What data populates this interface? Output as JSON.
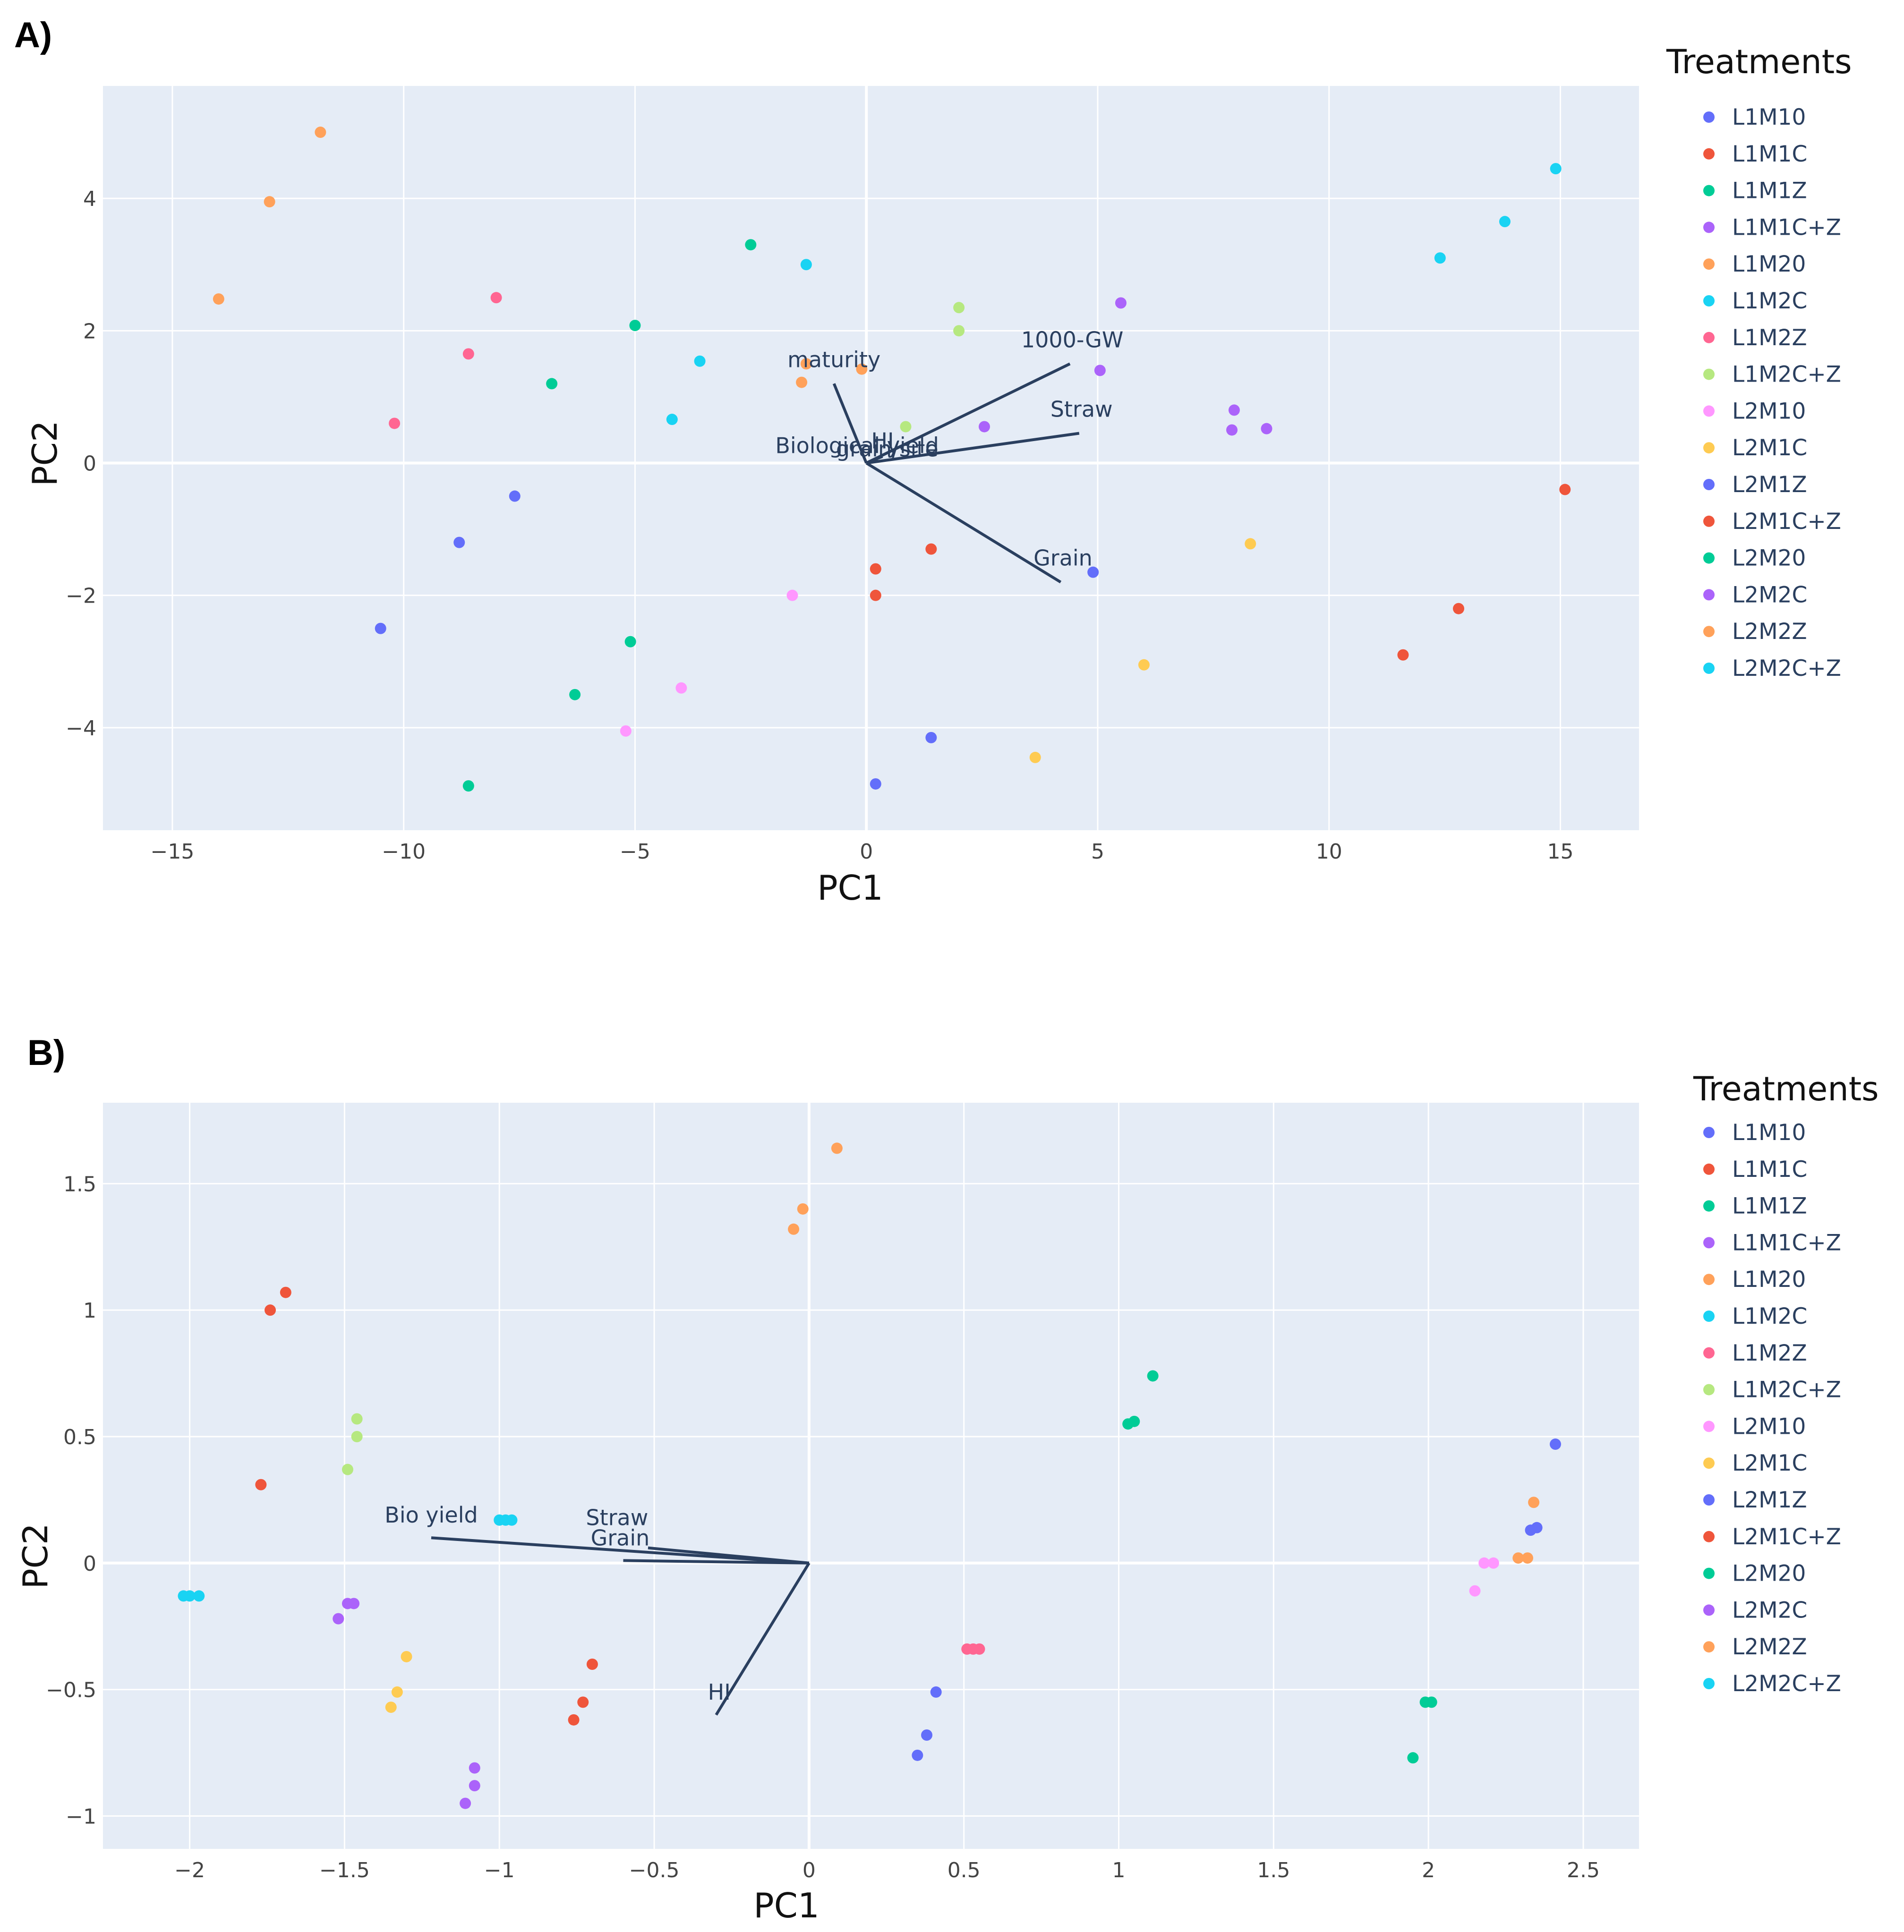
{
  "colors": {
    "plot_bg": "#e5ecf6",
    "grid": "#ffffff",
    "loading_line": "#2a3f5f",
    "treatments": {
      "L1M10": "#636efa",
      "L1M1C": "#ef553b",
      "L1M1Z": "#00cc96",
      "L1M1C+Z": "#ab63fa",
      "L1M20": "#ffa15a",
      "L1M2C": "#19d3f3",
      "L1M2Z": "#ff6692",
      "L1M2C+Z": "#b6e880",
      "L2M10": "#ff97ff",
      "L2M1C": "#fecb52",
      "L2M1Z": "#636efa",
      "L2M1C+Z": "#ef553b",
      "L2M20": "#00cc96",
      "L2M2C": "#ab63fa",
      "L2M2Z": "#ffa15a",
      "L2M2C+Z": "#19d3f3"
    }
  },
  "chart_data": [
    {
      "type": "scatter",
      "panel_label": "A)",
      "title": "",
      "xlabel": "PC1",
      "ylabel": "PC2",
      "xlim": [
        -16.5,
        16.7
      ],
      "ylim": [
        -5.55,
        5.7
      ],
      "xticks": [
        -15,
        -10,
        -5,
        0,
        5,
        10,
        15
      ],
      "xtick_labels": [
        "−15",
        "−10",
        "−5",
        "0",
        "5",
        "10",
        "15"
      ],
      "yticks": [
        -4,
        -2,
        0,
        2,
        4
      ],
      "ytick_labels": [
        "−4",
        "−2",
        "0",
        "2",
        "4"
      ],
      "legend_title": "Treatments",
      "legend_labels": [
        "L1M10",
        "L1M1C",
        "L1M1Z",
        "L1M1C+Z",
        "L1M20",
        "L1M2C",
        "L1M2Z",
        "L1M2C+Z",
        "L2M10",
        "L2M1C",
        "L2M1Z",
        "L2M1C+Z",
        "L2M20",
        "L2M2C",
        "L2M2Z",
        "L2M2C+Z"
      ],
      "series": [
        {
          "name": "L1M10",
          "points": [
            [
              -7.6,
              -0.5
            ],
            [
              -8.8,
              -1.2
            ],
            [
              -10.5,
              -2.5
            ]
          ]
        },
        {
          "name": "L1M1C",
          "points": [
            [
              0.2,
              -1.6
            ],
            [
              0.2,
              -2.0
            ],
            [
              1.4,
              -1.3
            ]
          ]
        },
        {
          "name": "L1M1Z",
          "points": [
            [
              -2.5,
              3.3
            ],
            [
              -5.0,
              2.08
            ],
            [
              -6.8,
              1.2
            ]
          ]
        },
        {
          "name": "L1M1C+Z",
          "points": [
            [
              5.5,
              2.42
            ],
            [
              5.05,
              1.4
            ],
            [
              2.55,
              0.55
            ]
          ]
        },
        {
          "name": "L1M20",
          "points": [
            [
              -11.8,
              5.0
            ],
            [
              -12.9,
              3.95
            ],
            [
              -14.0,
              2.48
            ]
          ]
        },
        {
          "name": "L1M2C",
          "points": [
            [
              -1.3,
              3.0
            ],
            [
              -3.6,
              1.54
            ],
            [
              -4.2,
              0.66
            ]
          ]
        },
        {
          "name": "L1M2Z",
          "points": [
            [
              -8.0,
              2.5
            ],
            [
              -8.6,
              1.65
            ],
            [
              -10.2,
              0.6
            ]
          ]
        },
        {
          "name": "L1M2C+Z",
          "points": [
            [
              2.0,
              2.35
            ],
            [
              2.0,
              2.0
            ],
            [
              0.85,
              0.55
            ]
          ]
        },
        {
          "name": "L2M10",
          "points": [
            [
              -1.6,
              -2.0
            ],
            [
              -4.0,
              -3.4
            ],
            [
              -5.2,
              -4.05
            ]
          ]
        },
        {
          "name": "L2M1C",
          "points": [
            [
              8.3,
              -1.22
            ],
            [
              6.0,
              -3.05
            ],
            [
              3.65,
              -4.45
            ]
          ]
        },
        {
          "name": "L2M1Z",
          "points": [
            [
              4.9,
              -1.65
            ],
            [
              1.4,
              -4.15
            ],
            [
              0.2,
              -4.85
            ]
          ]
        },
        {
          "name": "L2M1C+Z",
          "points": [
            [
              15.1,
              -0.4
            ],
            [
              12.8,
              -2.2
            ],
            [
              11.6,
              -2.9
            ]
          ]
        },
        {
          "name": "L2M20",
          "points": [
            [
              -5.1,
              -2.7
            ],
            [
              -6.3,
              -3.5
            ],
            [
              -8.6,
              -4.88
            ]
          ]
        },
        {
          "name": "L2M2C",
          "points": [
            [
              7.95,
              0.8
            ],
            [
              7.9,
              0.5
            ],
            [
              8.65,
              0.52
            ]
          ]
        },
        {
          "name": "L2M2Z",
          "points": [
            [
              -1.3,
              1.5
            ],
            [
              -1.4,
              1.22
            ],
            [
              -0.1,
              1.42
            ]
          ]
        },
        {
          "name": "L2M2C+Z",
          "points": [
            [
              14.9,
              4.45
            ],
            [
              13.8,
              3.65
            ],
            [
              12.4,
              3.1
            ]
          ]
        }
      ],
      "loadings": [
        {
          "label": "maturity",
          "x": -0.7,
          "y": 1.2
        },
        {
          "label": "1000-GW",
          "x": 4.4,
          "y": 1.5
        },
        {
          "label": "Straw",
          "x": 4.6,
          "y": 0.45
        },
        {
          "label": "Grain",
          "x": 4.2,
          "y": -1.8
        },
        {
          "label": "Biological yield",
          "x": 0.35,
          "y": 0.1
        },
        {
          "label": "HI",
          "x": 0.15,
          "y": 0.05
        },
        {
          "label": "grain/site",
          "x": 0.25,
          "y": 0.03
        }
      ],
      "loading_label_positions": [
        {
          "label": "maturity",
          "x": -0.7,
          "y": 1.45
        },
        {
          "label": "1000-GW",
          "x": 4.45,
          "y": 1.75
        },
        {
          "label": "Straw",
          "x": 4.65,
          "y": 0.7
        },
        {
          "label": "Grain",
          "x": 4.25,
          "y": -1.55
        },
        {
          "label": "Biological yield",
          "x": -0.2,
          "y": 0.15
        },
        {
          "label": "HI",
          "x": 0.35,
          "y": 0.22
        },
        {
          "label": "grain/site",
          "x": 0.45,
          "y": 0.1
        }
      ]
    },
    {
      "type": "scatter",
      "panel_label": "B)",
      "title": "",
      "xlabel": "PC1",
      "ylabel": "PC2",
      "xlim": [
        -2.28,
        2.68
      ],
      "ylim": [
        -1.13,
        1.82
      ],
      "xticks": [
        -2,
        -1.5,
        -1,
        -0.5,
        0,
        0.5,
        1,
        1.5,
        2,
        2.5
      ],
      "xtick_labels": [
        "−2",
        "−1.5",
        "−1",
        "−0.5",
        "0",
        "0.5",
        "1",
        "1.5",
        "2",
        "2.5"
      ],
      "yticks": [
        -1,
        -0.5,
        0,
        0.5,
        1,
        1.5
      ],
      "ytick_labels": [
        "−1",
        "−0.5",
        "0",
        "0.5",
        "1",
        "1.5"
      ],
      "legend_title": "Treatments",
      "legend_labels": [
        "L1M10",
        "L1M1C",
        "L1M1Z",
        "L1M1C+Z",
        "L1M20",
        "L1M2C",
        "L1M2Z",
        "L1M2C+Z",
        "L2M10",
        "L2M1C",
        "L2M1Z",
        "L2M1C+Z",
        "L2M20",
        "L2M2C",
        "L2M2Z",
        "L2M2C+Z"
      ],
      "series": [
        {
          "name": "L1M10",
          "points": [
            [
              0.41,
              -0.51
            ],
            [
              0.38,
              -0.68
            ],
            [
              0.35,
              -0.76
            ]
          ]
        },
        {
          "name": "L1M1C",
          "points": [
            [
              -1.69,
              1.07
            ],
            [
              -1.74,
              1.0
            ],
            [
              -1.77,
              0.31
            ]
          ]
        },
        {
          "name": "L1M1Z",
          "points": [
            [
              1.11,
              0.74
            ],
            [
              1.05,
              0.56
            ],
            [
              1.03,
              0.55
            ]
          ]
        },
        {
          "name": "L1M1C+Z",
          "points": [
            [
              -1.47,
              -0.16
            ],
            [
              -1.49,
              -0.16
            ],
            [
              -1.52,
              -0.22
            ]
          ]
        },
        {
          "name": "L1M20",
          "points": [
            [
              0.09,
              1.64
            ],
            [
              -0.02,
              1.4
            ],
            [
              -0.05,
              1.32
            ]
          ]
        },
        {
          "name": "L1M2C",
          "points": [
            [
              -0.98,
              0.17
            ],
            [
              -0.96,
              0.17
            ],
            [
              -1.0,
              0.17
            ]
          ]
        },
        {
          "name": "L1M2Z",
          "points": [
            [
              0.51,
              -0.34
            ],
            [
              0.53,
              -0.34
            ],
            [
              0.55,
              -0.34
            ]
          ]
        },
        {
          "name": "L1M2C+Z",
          "points": [
            [
              -1.46,
              0.57
            ],
            [
              -1.46,
              0.5
            ],
            [
              -1.49,
              0.37
            ]
          ]
        },
        {
          "name": "L2M10",
          "points": [
            [
              2.18,
              0.0
            ],
            [
              2.21,
              0.0
            ],
            [
              2.15,
              -0.11
            ]
          ]
        },
        {
          "name": "L2M1C",
          "points": [
            [
              -1.3,
              -0.37
            ],
            [
              -1.33,
              -0.51
            ],
            [
              -1.35,
              -0.57
            ]
          ]
        },
        {
          "name": "L2M1Z",
          "points": [
            [
              2.41,
              0.47
            ],
            [
              2.35,
              0.14
            ],
            [
              2.33,
              0.13
            ]
          ]
        },
        {
          "name": "L2M1C+Z",
          "points": [
            [
              -0.7,
              -0.4
            ],
            [
              -0.73,
              -0.55
            ],
            [
              -0.76,
              -0.62
            ]
          ]
        },
        {
          "name": "L2M20",
          "points": [
            [
              2.01,
              -0.55
            ],
            [
              1.99,
              -0.55
            ],
            [
              1.95,
              -0.77
            ]
          ]
        },
        {
          "name": "L2M2C",
          "points": [
            [
              -1.08,
              -0.81
            ],
            [
              -1.08,
              -0.88
            ],
            [
              -1.11,
              -0.95
            ]
          ]
        },
        {
          "name": "L2M2Z",
          "points": [
            [
              2.34,
              0.24
            ],
            [
              2.29,
              0.02
            ],
            [
              2.32,
              0.02
            ]
          ]
        },
        {
          "name": "L2M2C+Z",
          "points": [
            [
              -2.0,
              -0.13
            ],
            [
              -1.97,
              -0.13
            ],
            [
              -2.02,
              -0.13
            ]
          ]
        }
      ],
      "loadings": [
        {
          "label": "Bio yield",
          "x": -1.22,
          "y": 0.1
        },
        {
          "label": "Straw",
          "x": -0.52,
          "y": 0.06
        },
        {
          "label": "Grain",
          "x": -0.6,
          "y": 0.01
        },
        {
          "label": "HI",
          "x": -0.3,
          "y": -0.6
        }
      ],
      "loading_label_positions": [
        {
          "label": "Bio yield",
          "x": -1.22,
          "y": 0.16
        },
        {
          "label": "Straw",
          "x": -0.62,
          "y": 0.15
        },
        {
          "label": "Grain",
          "x": -0.61,
          "y": 0.07
        },
        {
          "label": "HI",
          "x": -0.29,
          "y": -0.54
        }
      ]
    }
  ]
}
